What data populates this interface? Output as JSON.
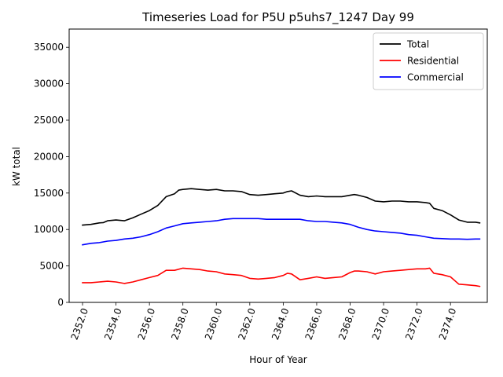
{
  "chart_data": {
    "type": "line",
    "title": "Timeseries Load for P5U p5uhs7_1247  Day 99",
    "xlabel": "Hour of Year",
    "ylabel": "kW total",
    "xlim": [
      2351.2,
      2376.2
    ],
    "ylim": [
      0,
      37500
    ],
    "xticks": [
      2352,
      2354,
      2356,
      2358,
      2360,
      2362,
      2364,
      2366,
      2368,
      2370,
      2372,
      2374
    ],
    "xtick_labels": [
      "2352.0",
      "2354.0",
      "2356.0",
      "2358.0",
      "2360.0",
      "2362.0",
      "2364.0",
      "2366.0",
      "2368.0",
      "2370.0",
      "2372.0",
      "2374.0"
    ],
    "yticks": [
      0,
      5000,
      10000,
      15000,
      20000,
      25000,
      30000,
      35000
    ],
    "ytick_labels": [
      "0",
      "5000",
      "10000",
      "15000",
      "20000",
      "25000",
      "30000",
      "35000"
    ],
    "legend_position": "top-right",
    "series": [
      {
        "name": "Total",
        "color": "#000000",
        "x": [
          2352.0,
          2352.5,
          2353.0,
          2353.25,
          2353.5,
          2354.0,
          2354.5,
          2355.0,
          2355.5,
          2356.0,
          2356.5,
          2357.0,
          2357.5,
          2357.75,
          2358.0,
          2358.5,
          2359.0,
          2359.5,
          2360.0,
          2360.5,
          2361.0,
          2361.5,
          2362.0,
          2362.5,
          2363.0,
          2363.5,
          2364.0,
          2364.25,
          2364.5,
          2365.0,
          2365.5,
          2366.0,
          2366.5,
          2367.0,
          2367.5,
          2368.0,
          2368.25,
          2368.5,
          2369.0,
          2369.5,
          2370.0,
          2370.5,
          2371.0,
          2371.5,
          2372.0,
          2372.5,
          2372.75,
          2373.0,
          2373.5,
          2374.0,
          2374.5,
          2375.0,
          2375.5,
          2375.75
        ],
        "values": [
          10600,
          10700,
          10900,
          10950,
          11200,
          11300,
          11200,
          11600,
          12100,
          12600,
          13300,
          14500,
          14900,
          15400,
          15500,
          15600,
          15500,
          15400,
          15500,
          15300,
          15300,
          15200,
          14800,
          14700,
          14800,
          14900,
          15000,
          15200,
          15300,
          14700,
          14500,
          14600,
          14500,
          14500,
          14500,
          14700,
          14800,
          14700,
          14400,
          13900,
          13800,
          13900,
          13900,
          13800,
          13800,
          13700,
          13600,
          12900,
          12600,
          12000,
          11300,
          11000,
          11000,
          10900
        ]
      },
      {
        "name": "Residential",
        "color": "#ff0000",
        "x": [
          2352.0,
          2352.5,
          2353.0,
          2353.5,
          2354.0,
          2354.5,
          2355.0,
          2355.5,
          2356.0,
          2356.5,
          2357.0,
          2357.5,
          2358.0,
          2358.5,
          2359.0,
          2359.5,
          2360.0,
          2360.5,
          2361.0,
          2361.5,
          2362.0,
          2362.5,
          2363.0,
          2363.5,
          2364.0,
          2364.25,
          2364.5,
          2365.0,
          2365.5,
          2366.0,
          2366.5,
          2367.0,
          2367.5,
          2368.0,
          2368.25,
          2368.5,
          2369.0,
          2369.5,
          2370.0,
          2370.5,
          2371.0,
          2371.5,
          2372.0,
          2372.5,
          2372.75,
          2373.0,
          2373.5,
          2374.0,
          2374.5,
          2375.0,
          2375.5,
          2375.75
        ],
        "values": [
          2700,
          2700,
          2800,
          2900,
          2800,
          2600,
          2800,
          3100,
          3400,
          3700,
          4400,
          4400,
          4700,
          4600,
          4500,
          4300,
          4200,
          3900,
          3800,
          3700,
          3300,
          3200,
          3300,
          3400,
          3700,
          4000,
          3900,
          3100,
          3300,
          3500,
          3300,
          3400,
          3500,
          4100,
          4300,
          4300,
          4200,
          3900,
          4200,
          4300,
          4400,
          4500,
          4600,
          4600,
          4700,
          4000,
          3800,
          3500,
          2500,
          2400,
          2300,
          2200
        ]
      },
      {
        "name": "Commercial",
        "color": "#0000ff",
        "x": [
          2352.0,
          2352.5,
          2353.0,
          2353.5,
          2354.0,
          2354.5,
          2355.0,
          2355.5,
          2356.0,
          2356.5,
          2357.0,
          2357.5,
          2358.0,
          2358.5,
          2359.0,
          2359.5,
          2360.0,
          2360.5,
          2361.0,
          2361.5,
          2362.0,
          2362.5,
          2363.0,
          2363.5,
          2364.0,
          2364.5,
          2365.0,
          2365.5,
          2366.0,
          2366.5,
          2367.0,
          2367.5,
          2368.0,
          2368.5,
          2369.0,
          2369.5,
          2370.0,
          2370.5,
          2371.0,
          2371.5,
          2372.0,
          2372.5,
          2373.0,
          2373.5,
          2374.0,
          2374.5,
          2375.0,
          2375.5,
          2375.75
        ],
        "values": [
          7900,
          8100,
          8200,
          8400,
          8500,
          8700,
          8800,
          9000,
          9300,
          9700,
          10200,
          10500,
          10800,
          10900,
          11000,
          11100,
          11200,
          11400,
          11500,
          11500,
          11500,
          11500,
          11400,
          11400,
          11400,
          11400,
          11400,
          11200,
          11100,
          11100,
          11000,
          10900,
          10700,
          10300,
          10000,
          9800,
          9700,
          9600,
          9500,
          9300,
          9200,
          9000,
          8800,
          8750,
          8700,
          8700,
          8650,
          8700,
          8700
        ]
      }
    ]
  }
}
